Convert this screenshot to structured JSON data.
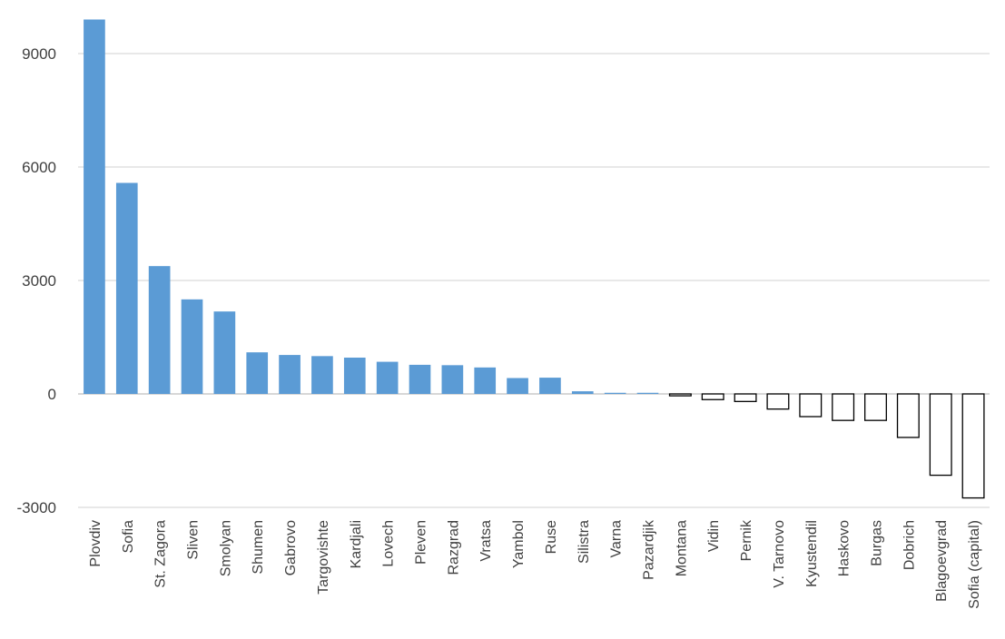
{
  "chart_data": {
    "type": "bar",
    "title": "",
    "xlabel": "",
    "ylabel": "",
    "ylim": [
      -3000,
      10000
    ],
    "yticks": [
      -3000,
      0,
      3000,
      6000,
      9000
    ],
    "grid": true,
    "positive_color": "#5b9bd5",
    "negative_fill": "#ffffff",
    "negative_stroke": "#000000",
    "categories": [
      "Plovdiv",
      "Sofia",
      "St. Zagora",
      "Sliven",
      "Smolyan",
      "Shumen",
      "Gabrovo",
      "Targovishte",
      "Kardjali",
      "Lovech",
      "Pleven",
      "Razgrad",
      "Vratsa",
      "Yambol",
      "Ruse",
      "Silistra",
      "Varna",
      "Pazardjik",
      "Montana",
      "Vidin",
      "Pernik",
      "V. Tarnovo",
      "Kyustendil",
      "Haskovo",
      "Burgas",
      "Dobrich",
      "Blagoevgrad",
      "Sofia (capital)"
    ],
    "values": [
      9900,
      5580,
      3380,
      2500,
      2180,
      1100,
      1030,
      1000,
      960,
      850,
      770,
      760,
      700,
      420,
      430,
      70,
      30,
      30,
      -50,
      -150,
      -200,
      -400,
      -600,
      -700,
      -700,
      -1150,
      -2150,
      -2750
    ]
  }
}
